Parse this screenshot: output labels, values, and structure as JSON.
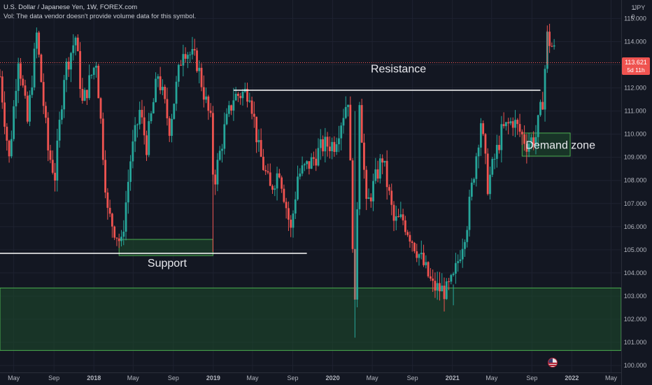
{
  "header": {
    "symbol_title": "U.S. Dollar / Japanese Yen, 1W, FOREX.com",
    "volume_note": "Vol: The data vendor doesn't provide volume data for this symbol."
  },
  "price_scale": {
    "currency": "JPY",
    "currency_count": "1",
    "zero_marker": "0",
    "current_price": "113.621",
    "countdown": "5d 11h"
  },
  "colors": {
    "background": "#131722",
    "grid": "#1e2230",
    "up": "#26a69a",
    "down": "#ef5350",
    "zone_fill": "#1e4d2b",
    "zone_border": "#4caf50",
    "annotation_line": "#ffffff",
    "price_label": "#ef5350"
  },
  "chart_data": {
    "type": "candlestick",
    "interval": "1W",
    "y_range": [
      99.7,
      115.8
    ],
    "y_ticks": [
      "100.000",
      "101.000",
      "102.000",
      "103.000",
      "104.000",
      "105.000",
      "106.000",
      "107.000",
      "108.000",
      "109.000",
      "110.000",
      "111.000",
      "112.000",
      "113.000",
      "114.000",
      "115.000"
    ],
    "x_range": [
      "2017-03-20",
      "2022-06-01"
    ],
    "x_ticks": [
      {
        "date": "2017-05-01",
        "label": "May"
      },
      {
        "date": "2017-09-01",
        "label": "Sep"
      },
      {
        "date": "2018-01-01",
        "label": "2018"
      },
      {
        "date": "2018-05-01",
        "label": "May"
      },
      {
        "date": "2018-09-01",
        "label": "Sep"
      },
      {
        "date": "2019-01-01",
        "label": "2019"
      },
      {
        "date": "2019-05-01",
        "label": "May"
      },
      {
        "date": "2019-09-01",
        "label": "Sep"
      },
      {
        "date": "2020-01-01",
        "label": "2020"
      },
      {
        "date": "2020-05-01",
        "label": "May"
      },
      {
        "date": "2020-09-01",
        "label": "Sep"
      },
      {
        "date": "2021-01-01",
        "label": "2021"
      },
      {
        "date": "2021-05-01",
        "label": "May"
      },
      {
        "date": "2021-09-01",
        "label": "Sep"
      },
      {
        "date": "2022-01-01",
        "label": "2022"
      },
      {
        "date": "2022-05-01",
        "label": "May"
      }
    ],
    "price_path": [
      [
        "2017-03-20",
        112.5
      ],
      [
        "2017-04-17",
        108.9
      ],
      [
        "2017-05-15",
        113.4
      ],
      [
        "2017-06-12",
        110.5
      ],
      [
        "2017-07-10",
        114.3
      ],
      [
        "2017-08-14",
        109.3
      ],
      [
        "2017-09-04",
        108.2
      ],
      [
        "2017-10-02",
        112.6
      ],
      [
        "2017-11-06",
        114.2
      ],
      [
        "2017-11-27",
        111.3
      ],
      [
        "2018-01-08",
        113.2
      ],
      [
        "2018-02-12",
        106.6
      ],
      [
        "2018-03-26",
        105.2
      ],
      [
        "2018-04-23",
        108.9
      ],
      [
        "2018-05-21",
        111.0
      ],
      [
        "2018-06-11",
        109.5
      ],
      [
        "2018-07-16",
        112.6
      ],
      [
        "2018-08-20",
        110.3
      ],
      [
        "2018-10-01",
        113.8
      ],
      [
        "2018-11-12",
        113.1
      ],
      [
        "2018-12-24",
        110.5
      ],
      [
        "2019-01-02",
        107.8
      ],
      [
        "2019-02-04",
        110.2
      ],
      [
        "2019-03-04",
        111.6
      ],
      [
        "2019-04-22",
        111.9
      ],
      [
        "2019-05-20",
        109.3
      ],
      [
        "2019-06-24",
        107.6
      ],
      [
        "2019-07-22",
        108.5
      ],
      [
        "2019-08-26",
        105.8
      ],
      [
        "2019-09-16",
        108.2
      ],
      [
        "2019-10-28",
        108.8
      ],
      [
        "2019-12-02",
        109.5
      ],
      [
        "2020-01-06",
        109.6
      ],
      [
        "2020-02-17",
        111.6
      ],
      [
        "2020-03-09",
        102.4
      ],
      [
        "2020-03-23",
        111.6
      ],
      [
        "2020-04-13",
        106.8
      ],
      [
        "2020-06-01",
        109.0
      ],
      [
        "2020-07-06",
        106.2
      ],
      [
        "2020-08-03",
        106.3
      ],
      [
        "2020-09-21",
        104.8
      ],
      [
        "2020-11-02",
        103.4
      ],
      [
        "2020-12-14",
        103.2
      ],
      [
        "2021-01-04",
        103.7
      ],
      [
        "2021-02-15",
        106.2
      ],
      [
        "2021-03-29",
        110.6
      ],
      [
        "2021-04-19",
        107.8
      ],
      [
        "2021-06-01",
        110.1
      ],
      [
        "2021-07-05",
        110.6
      ],
      [
        "2021-08-16",
        109.6
      ],
      [
        "2021-09-13",
        109.9
      ],
      [
        "2021-10-04",
        111.5
      ],
      [
        "2021-10-18",
        114.2
      ],
      [
        "2021-11-08",
        113.6
      ]
    ],
    "current_price": 113.621,
    "annotations": [
      {
        "kind": "hline",
        "price": 111.9,
        "from": "2019-03-04",
        "to": "2021-09-27",
        "label": "Resistance",
        "label_date": "2020-07-20",
        "label_price": 112.85
      },
      {
        "kind": "hline",
        "price": 104.85,
        "from": "2017-03-20",
        "to": "2019-10-14",
        "label": "Support",
        "label_date": "2018-08-13",
        "label_price": 104.45
      },
      {
        "kind": "zone",
        "from": "2018-03-19",
        "to": "2018-12-31",
        "price_from": 104.75,
        "price_to": 105.45
      },
      {
        "kind": "zone",
        "from": "2017-03-20",
        "to": "2022-06-01",
        "price_from": 100.65,
        "price_to": 103.35
      },
      {
        "kind": "zone",
        "from": "2021-08-02",
        "to": "2021-12-27",
        "price_from": 109.05,
        "price_to": 110.05,
        "label": "Demand zone"
      }
    ]
  }
}
